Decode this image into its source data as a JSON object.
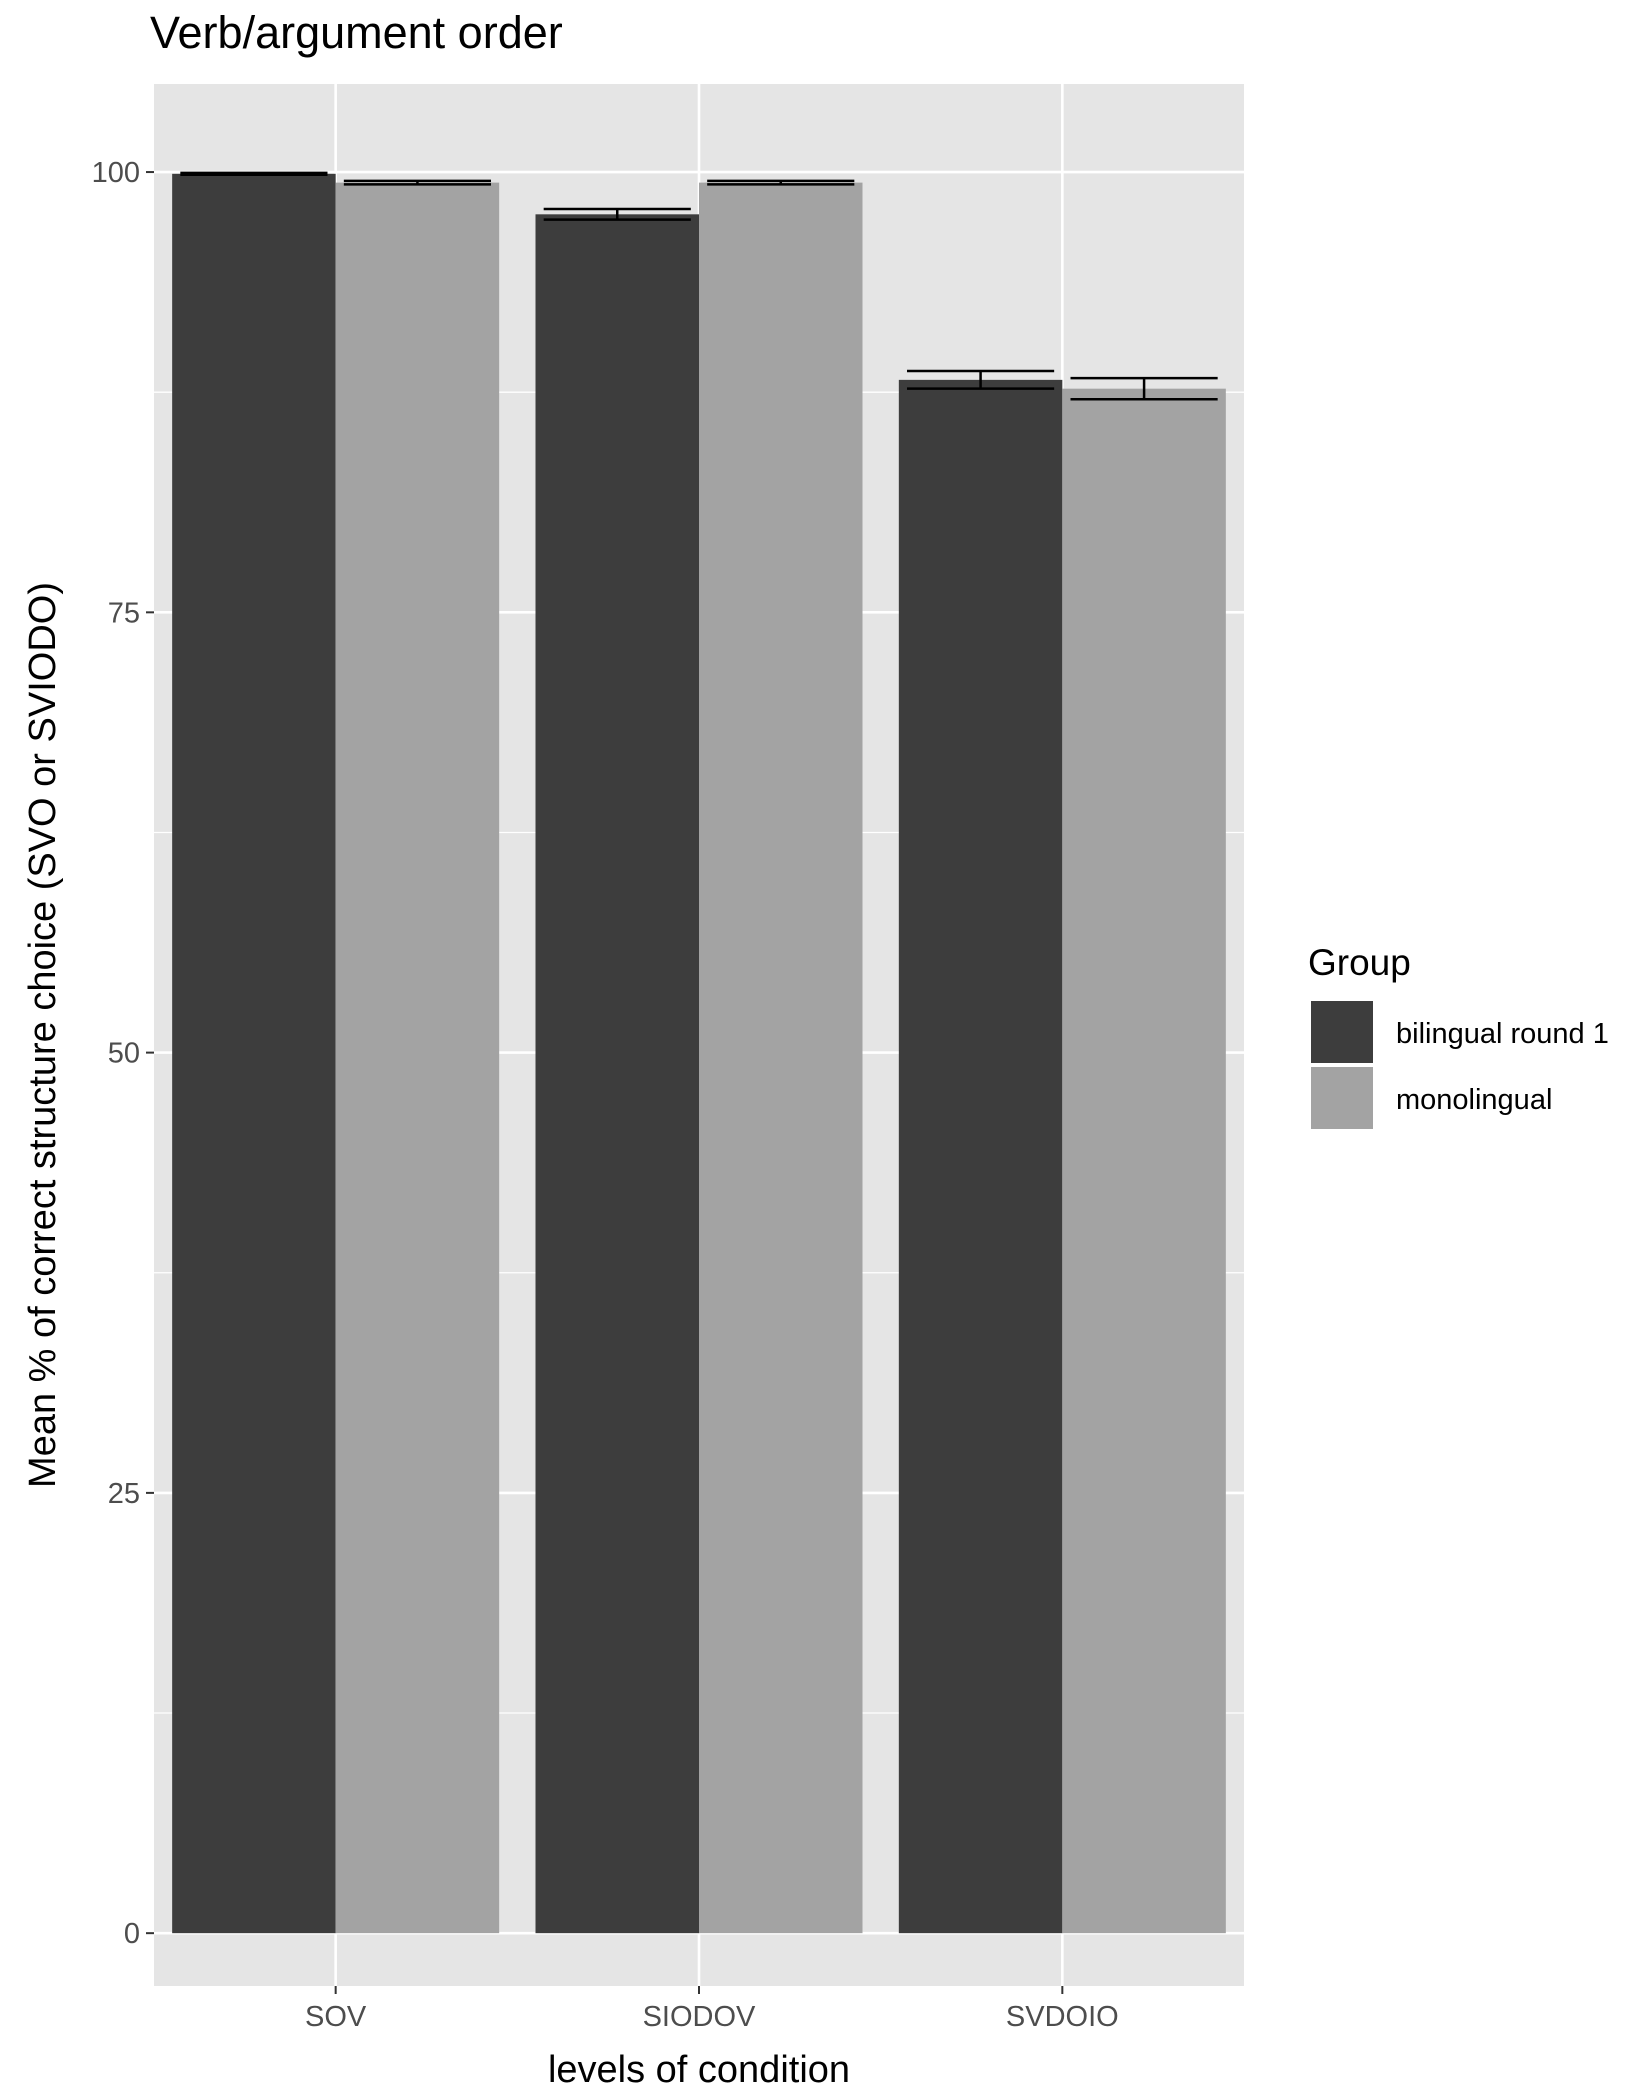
{
  "chart_data": {
    "type": "bar",
    "title": "Verb/argument order",
    "xlabel": "levels of condition",
    "ylabel": "Mean % of correct structure choice (SVO or SVIODO)",
    "categories": [
      "SOV",
      "SIODOV",
      "SVDOIO"
    ],
    "series": [
      {
        "name": "bilingual round 1",
        "color": "#3d3d3d",
        "values": [
          99.9,
          97.6,
          88.2
        ],
        "error": [
          0.05,
          0.3,
          0.5
        ]
      },
      {
        "name": "monolingual",
        "color": "#a3a3a3",
        "values": [
          99.4,
          99.4,
          87.7
        ],
        "error": [
          0.1,
          0.1,
          0.6
        ]
      }
    ],
    "yticks": [
      0,
      25,
      50,
      75,
      100
    ],
    "ylim": [
      -3,
      105
    ],
    "grid": true,
    "legend": {
      "title": "Group",
      "position": "right"
    },
    "colors": {
      "panel_background": "#e5e5e5",
      "grid": "#ffffff",
      "page_background": "#ffffff"
    }
  }
}
